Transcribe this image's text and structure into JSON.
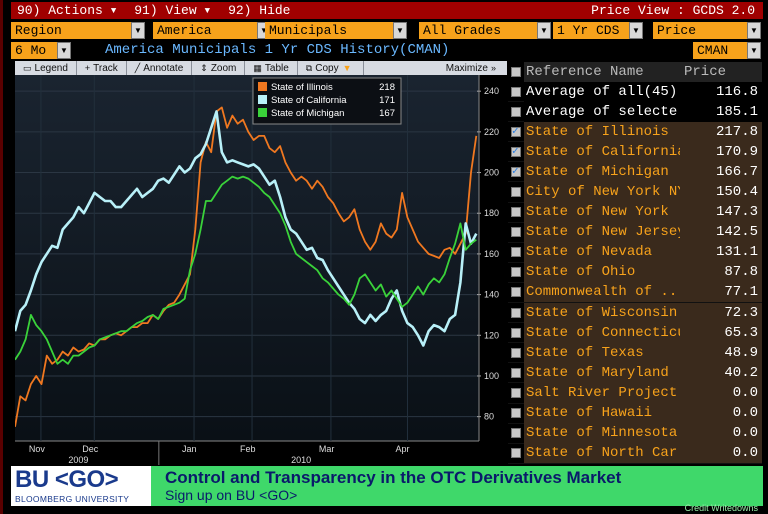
{
  "menu": {
    "actions": "90) Actions",
    "view": "91) View",
    "hide": "92) Hide",
    "price_view": "Price View : GCDS 2.0"
  },
  "fields": {
    "region": "Region",
    "america": "America",
    "municipals": "Municipals",
    "grades": "All Grades",
    "tenor": "1 Yr CDS",
    "price": "Price",
    "period": "6 Mo",
    "cman": "CMAN",
    "subtitle": "America Municipals 1 Yr CDS History(CMAN)"
  },
  "chart_toolbar": {
    "legend": "Legend",
    "track": "Track",
    "annotate": "Annotate",
    "zoom": "Zoom",
    "table": "Table",
    "copy": "Copy",
    "maximize": "Maximize"
  },
  "chart_data": {
    "type": "line",
    "x_labels": [
      "Nov",
      "Dec",
      "Jan",
      "Feb",
      "Mar",
      "Apr"
    ],
    "year_labels": [
      "2009",
      "2010"
    ],
    "yticks": [
      80,
      100,
      120,
      140,
      160,
      180,
      200,
      220,
      240
    ],
    "ylim": [
      70,
      245
    ],
    "xlim": [
      0,
      175
    ],
    "legend": [
      {
        "name": "State of Illinois",
        "value": "218",
        "color": "#f07820"
      },
      {
        "name": "State of California",
        "value": "171",
        "color": "#b8f0f8"
      },
      {
        "name": "State of Michigan",
        "value": "167",
        "color": "#3ad23a"
      }
    ],
    "series": [
      {
        "name": "State of Illinois",
        "color": "#f07820",
        "x": [
          0,
          2,
          4,
          6,
          8,
          10,
          12,
          14,
          16,
          18,
          20,
          22,
          24,
          26,
          28,
          30,
          32,
          34,
          36,
          38,
          40,
          42,
          44,
          46,
          48,
          50,
          52,
          54,
          56,
          58,
          60,
          62,
          64,
          66,
          68,
          70,
          72,
          74,
          76,
          78,
          80,
          82,
          84,
          86,
          88,
          90,
          92,
          94,
          96,
          98,
          100,
          102,
          104,
          106,
          108,
          110,
          112,
          114,
          116,
          118,
          120,
          122,
          124,
          126,
          128,
          130,
          132,
          134,
          136,
          138,
          140,
          142,
          144,
          146,
          148,
          150,
          152,
          154,
          156,
          158,
          160,
          162,
          164,
          166,
          168,
          170,
          172,
          174
        ],
        "y": [
          75,
          90,
          88,
          96,
          100,
          96,
          110,
          106,
          108,
          112,
          110,
          114,
          112,
          113,
          116,
          115,
          118,
          118,
          120,
          121,
          120,
          122,
          124,
          124,
          126,
          126,
          130,
          128,
          132,
          135,
          136,
          140,
          145,
          150,
          172,
          205,
          215,
          210,
          230,
          232,
          222,
          228,
          224,
          226,
          220,
          216,
          218,
          218,
          212,
          210,
          213,
          205,
          200,
          196,
          198,
          196,
          192,
          196,
          193,
          188,
          185,
          180,
          176,
          178,
          182,
          172,
          166,
          162,
          166,
          175,
          170,
          168,
          172,
          190,
          178,
          172,
          166,
          163,
          160,
          159,
          158,
          162,
          163,
          160,
          165,
          170,
          200,
          218
        ]
      },
      {
        "name": "State of California",
        "color": "#b8f0f8",
        "x": [
          0,
          2,
          4,
          6,
          8,
          10,
          12,
          14,
          16,
          18,
          20,
          22,
          24,
          26,
          28,
          30,
          32,
          34,
          36,
          38,
          40,
          42,
          44,
          46,
          48,
          50,
          52,
          54,
          56,
          58,
          60,
          62,
          64,
          66,
          68,
          70,
          72,
          74,
          76,
          78,
          80,
          82,
          84,
          86,
          88,
          90,
          92,
          94,
          96,
          98,
          100,
          102,
          104,
          106,
          108,
          110,
          112,
          114,
          116,
          118,
          120,
          122,
          124,
          126,
          128,
          130,
          132,
          134,
          136,
          138,
          140,
          142,
          144,
          146,
          148,
          150,
          152,
          154,
          156,
          158,
          160,
          162,
          164,
          166,
          168,
          170,
          172,
          174
        ],
        "y": [
          122,
          132,
          135,
          142,
          150,
          156,
          160,
          164,
          163,
          172,
          175,
          178,
          183,
          180,
          185,
          190,
          188,
          186,
          186,
          183,
          183,
          186,
          189,
          192,
          188,
          190,
          192,
          196,
          197,
          195,
          199,
          203,
          200,
          202,
          207,
          209,
          214,
          222,
          230,
          210,
          205,
          206,
          205,
          204,
          203,
          204,
          202,
          198,
          194,
          196,
          188,
          178,
          172,
          170,
          166,
          162,
          163,
          158,
          157,
          152,
          148,
          144,
          140,
          136,
          133,
          128,
          126,
          130,
          127,
          130,
          132,
          138,
          142,
          132,
          126,
          124,
          120,
          115,
          122,
          125,
          124,
          122,
          128,
          130,
          146,
          175,
          165,
          170
        ]
      },
      {
        "name": "State of Michigan",
        "color": "#3ad23a",
        "x": [
          0,
          2,
          4,
          6,
          8,
          10,
          12,
          14,
          16,
          18,
          20,
          22,
          24,
          26,
          28,
          30,
          32,
          34,
          36,
          38,
          40,
          42,
          44,
          46,
          48,
          50,
          52,
          54,
          56,
          58,
          60,
          62,
          64,
          66,
          68,
          70,
          72,
          74,
          76,
          78,
          80,
          82,
          84,
          86,
          88,
          90,
          92,
          94,
          96,
          98,
          100,
          102,
          104,
          106,
          108,
          110,
          112,
          114,
          116,
          118,
          120,
          122,
          124,
          126,
          128,
          130,
          132,
          134,
          136,
          138,
          140,
          142,
          144,
          146,
          148,
          150,
          152,
          154,
          156,
          158,
          160,
          162,
          164,
          166,
          168,
          170,
          172,
          174
        ],
        "y": [
          108,
          112,
          118,
          130,
          125,
          122,
          118,
          112,
          106,
          108,
          106,
          110,
          110,
          112,
          114,
          115,
          118,
          119,
          120,
          121,
          122,
          122,
          124,
          126,
          127,
          129,
          130,
          128,
          133,
          134,
          135,
          136,
          138,
          152,
          160,
          172,
          186,
          186,
          190,
          194,
          196,
          198,
          197,
          198,
          197,
          195,
          193,
          190,
          188,
          184,
          180,
          174,
          166,
          160,
          158,
          156,
          154,
          152,
          148,
          146,
          143,
          140,
          138,
          135,
          140,
          148,
          150,
          146,
          142,
          145,
          139,
          142,
          138,
          134,
          136,
          140,
          144,
          140,
          145,
          148,
          146,
          150,
          158,
          165,
          175,
          162,
          165,
          167
        ]
      }
    ]
  },
  "table": {
    "head_name": "Reference Name",
    "head_price": "Price",
    "rows": [
      {
        "name": "Average of all(45)",
        "price": "116.8",
        "style": "white",
        "checked": false
      },
      {
        "name": "Average of selecte...",
        "price": "185.1",
        "style": "white",
        "checked": false
      },
      {
        "name": "State of Illinois",
        "price": "217.8",
        "style": "orange",
        "checked": true
      },
      {
        "name": "State of California",
        "price": "170.9",
        "style": "orange",
        "checked": true
      },
      {
        "name": "State of Michigan",
        "price": "166.7",
        "style": "orange",
        "checked": true
      },
      {
        "name": "City of New York NY",
        "price": "150.4",
        "style": "orange",
        "checked": false
      },
      {
        "name": "State of New York",
        "price": "147.3",
        "style": "orange",
        "checked": false
      },
      {
        "name": "State of New Jersey",
        "price": "142.5",
        "style": "orange",
        "checked": false
      },
      {
        "name": "State of Nevada",
        "price": "131.1",
        "style": "orange",
        "checked": false
      },
      {
        "name": "State of Ohio",
        "price": "87.8",
        "style": "orange",
        "checked": false
      },
      {
        "name": "Commonwealth of ...",
        "price": "77.1",
        "style": "orange",
        "checked": false
      },
      {
        "name": "State of Wisconsin",
        "price": "72.3",
        "style": "orange",
        "checked": false
      },
      {
        "name": "State of Connecticut",
        "price": "65.3",
        "style": "orange",
        "checked": false
      },
      {
        "name": "State of Texas",
        "price": "48.9",
        "style": "orange",
        "checked": false
      },
      {
        "name": "State of Maryland",
        "price": "40.2",
        "style": "orange",
        "checked": false
      },
      {
        "name": "Salt River Project ...",
        "price": "0.0",
        "style": "orange",
        "checked": false
      },
      {
        "name": "State of Hawaii",
        "price": "0.0",
        "style": "orange",
        "checked": false
      },
      {
        "name": "State of Minnesota",
        "price": "0.0",
        "style": "orange",
        "checked": false
      },
      {
        "name": "State of North Car...",
        "price": "0.0",
        "style": "orange",
        "checked": false
      }
    ]
  },
  "banner": {
    "logo": "BU <GO>",
    "logo_sub": "BLOOMBERG UNIVERSITY",
    "headline": "Control and Transparency in the OTC Derivatives Market",
    "sub": "Sign up on BU <GO>",
    "credit": "Credit Writedowns"
  }
}
